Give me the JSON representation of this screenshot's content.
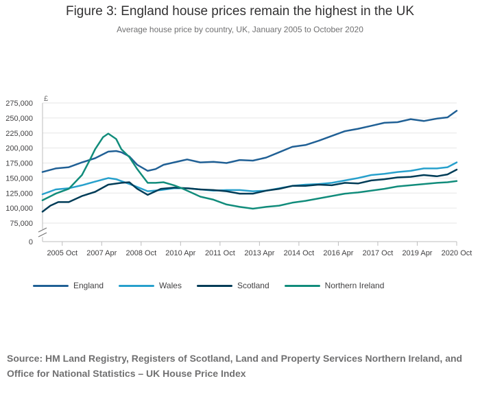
{
  "title": "Figure 3: England house prices remain the highest in the UK",
  "subtitle": "Average house price by country, UK, January 2005 to October 2020",
  "source": "Source: HM Land Registry, Registers of Scotland, Land and Property Services Northern Ireland, and Office for National Statistics – UK House Price Index",
  "chart_data": {
    "type": "line",
    "title": "Figure 3: England house prices remain the highest in the UK",
    "subtitle": "Average house price by country, UK, January 2005 to October 2020",
    "ylabel": "£",
    "xlabel": "",
    "ylim": [
      0,
      275000
    ],
    "axis_break": true,
    "grid": true,
    "legend_position": "bottom",
    "y_ticks": [
      0,
      75000,
      100000,
      125000,
      150000,
      175000,
      200000,
      225000,
      250000,
      275000
    ],
    "y_tick_labels": [
      "0",
      "75,000",
      "100,000",
      "125,000",
      "150,000",
      "175,000",
      "200,000",
      "225,000",
      "250,000",
      "275,000"
    ],
    "x_ticks": [
      2005.75,
      2007.25,
      2008.75,
      2010.25,
      2011.75,
      2013.25,
      2014.75,
      2016.25,
      2017.75,
      2019.25,
      2020.75
    ],
    "x_tick_labels": [
      "2005 Oct",
      "2007 Apr",
      "2008 Oct",
      "2010 Apr",
      "2011 Oct",
      "2013 Apr",
      "2014 Oct",
      "2016 Apr",
      "2017 Oct",
      "2019 Apr",
      "2020 Oct"
    ],
    "x_range": [
      2005.0,
      2020.75
    ],
    "series": [
      {
        "name": "England",
        "color": "#206095",
        "points": [
          [
            2005.0,
            160000
          ],
          [
            2005.5,
            166000
          ],
          [
            2006.0,
            168000
          ],
          [
            2006.5,
            176000
          ],
          [
            2007.0,
            183000
          ],
          [
            2007.5,
            194000
          ],
          [
            2007.8,
            195000
          ],
          [
            2008.0,
            193000
          ],
          [
            2008.3,
            186000
          ],
          [
            2008.6,
            172000
          ],
          [
            2009.0,
            162000
          ],
          [
            2009.3,
            165000
          ],
          [
            2009.6,
            172000
          ],
          [
            2010.0,
            176000
          ],
          [
            2010.3,
            179000
          ],
          [
            2010.5,
            181000
          ],
          [
            2010.8,
            178000
          ],
          [
            2011.0,
            176000
          ],
          [
            2011.5,
            177000
          ],
          [
            2012.0,
            175000
          ],
          [
            2012.5,
            180000
          ],
          [
            2013.0,
            179000
          ],
          [
            2013.5,
            184000
          ],
          [
            2014.0,
            193000
          ],
          [
            2014.5,
            202000
          ],
          [
            2015.0,
            205000
          ],
          [
            2015.5,
            212000
          ],
          [
            2016.0,
            220000
          ],
          [
            2016.5,
            228000
          ],
          [
            2017.0,
            232000
          ],
          [
            2017.5,
            237000
          ],
          [
            2018.0,
            242000
          ],
          [
            2018.5,
            243000
          ],
          [
            2019.0,
            248000
          ],
          [
            2019.5,
            245000
          ],
          [
            2020.0,
            249000
          ],
          [
            2020.4,
            251000
          ],
          [
            2020.75,
            262000
          ]
        ]
      },
      {
        "name": "Wales",
        "color": "#27a0cc",
        "points": [
          [
            2005.0,
            123000
          ],
          [
            2005.5,
            131000
          ],
          [
            2006.0,
            133000
          ],
          [
            2006.5,
            138000
          ],
          [
            2007.0,
            144000
          ],
          [
            2007.5,
            150000
          ],
          [
            2007.8,
            148000
          ],
          [
            2008.0,
            145000
          ],
          [
            2008.5,
            137000
          ],
          [
            2009.0,
            128000
          ],
          [
            2009.5,
            130000
          ],
          [
            2010.0,
            133000
          ],
          [
            2010.5,
            133000
          ],
          [
            2011.0,
            131000
          ],
          [
            2011.5,
            129000
          ],
          [
            2012.0,
            130000
          ],
          [
            2012.5,
            130000
          ],
          [
            2013.0,
            128000
          ],
          [
            2013.5,
            129000
          ],
          [
            2014.0,
            133000
          ],
          [
            2014.5,
            137000
          ],
          [
            2015.0,
            139000
          ],
          [
            2015.5,
            140000
          ],
          [
            2016.0,
            142000
          ],
          [
            2016.5,
            146000
          ],
          [
            2017.0,
            150000
          ],
          [
            2017.5,
            155000
          ],
          [
            2018.0,
            157000
          ],
          [
            2018.5,
            160000
          ],
          [
            2019.0,
            162000
          ],
          [
            2019.5,
            166000
          ],
          [
            2020.0,
            166000
          ],
          [
            2020.4,
            168000
          ],
          [
            2020.75,
            176000
          ]
        ]
      },
      {
        "name": "Scotland",
        "color": "#003c57",
        "points": [
          [
            2005.0,
            94000
          ],
          [
            2005.3,
            104000
          ],
          [
            2005.6,
            110000
          ],
          [
            2006.0,
            110000
          ],
          [
            2006.5,
            120000
          ],
          [
            2007.0,
            127000
          ],
          [
            2007.5,
            139000
          ],
          [
            2008.0,
            142000
          ],
          [
            2008.3,
            143000
          ],
          [
            2008.6,
            132000
          ],
          [
            2009.0,
            122000
          ],
          [
            2009.5,
            132000
          ],
          [
            2010.0,
            134000
          ],
          [
            2010.5,
            133000
          ],
          [
            2011.0,
            131000
          ],
          [
            2011.5,
            130000
          ],
          [
            2012.0,
            128000
          ],
          [
            2012.5,
            124000
          ],
          [
            2013.0,
            124000
          ],
          [
            2013.5,
            129000
          ],
          [
            2014.0,
            132000
          ],
          [
            2014.5,
            137000
          ],
          [
            2015.0,
            137000
          ],
          [
            2015.5,
            139000
          ],
          [
            2016.0,
            138000
          ],
          [
            2016.5,
            142000
          ],
          [
            2017.0,
            141000
          ],
          [
            2017.5,
            146000
          ],
          [
            2018.0,
            148000
          ],
          [
            2018.5,
            151000
          ],
          [
            2019.0,
            152000
          ],
          [
            2019.5,
            155000
          ],
          [
            2020.0,
            153000
          ],
          [
            2020.4,
            156000
          ],
          [
            2020.75,
            164000
          ]
        ]
      },
      {
        "name": "Northern Ireland",
        "color": "#118c7b",
        "points": [
          [
            2005.0,
            113000
          ],
          [
            2005.5,
            124000
          ],
          [
            2006.0,
            132000
          ],
          [
            2006.5,
            155000
          ],
          [
            2006.8,
            180000
          ],
          [
            2007.0,
            198000
          ],
          [
            2007.3,
            218000
          ],
          [
            2007.5,
            224000
          ],
          [
            2007.8,
            215000
          ],
          [
            2008.0,
            198000
          ],
          [
            2008.3,
            185000
          ],
          [
            2008.6,
            165000
          ],
          [
            2009.0,
            142000
          ],
          [
            2009.3,
            142000
          ],
          [
            2009.6,
            143000
          ],
          [
            2010.0,
            138000
          ],
          [
            2010.3,
            133000
          ],
          [
            2010.6,
            127000
          ],
          [
            2011.0,
            119000
          ],
          [
            2011.5,
            114000
          ],
          [
            2012.0,
            106000
          ],
          [
            2012.5,
            102000
          ],
          [
            2013.0,
            99000
          ],
          [
            2013.5,
            102000
          ],
          [
            2014.0,
            104000
          ],
          [
            2014.5,
            109000
          ],
          [
            2015.0,
            112000
          ],
          [
            2015.5,
            116000
          ],
          [
            2016.0,
            120000
          ],
          [
            2016.5,
            124000
          ],
          [
            2017.0,
            126000
          ],
          [
            2017.5,
            129000
          ],
          [
            2018.0,
            132000
          ],
          [
            2018.5,
            136000
          ],
          [
            2019.0,
            138000
          ],
          [
            2019.5,
            140000
          ],
          [
            2020.0,
            142000
          ],
          [
            2020.4,
            143000
          ],
          [
            2020.75,
            145000
          ]
        ]
      }
    ]
  }
}
